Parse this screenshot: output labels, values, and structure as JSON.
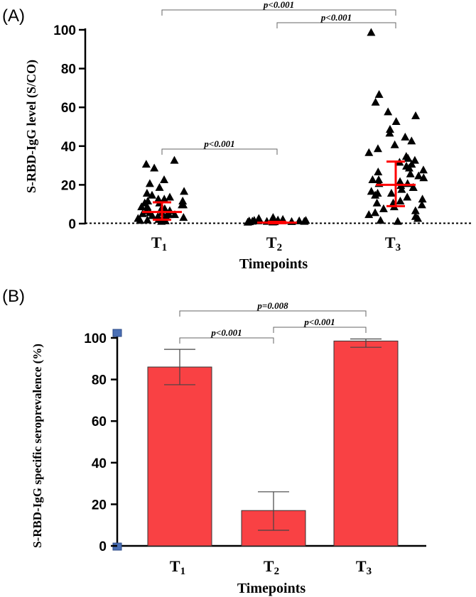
{
  "chart_data": [
    {
      "panel_label": "(A)",
      "type": "scatter",
      "title": "",
      "xlabel": "Timepoints",
      "ylabel": "S-RBD-IgG level (S/CO)",
      "ylim": [
        0,
        100
      ],
      "y_ticks": [
        "0",
        "20",
        "40",
        "60",
        "80",
        "100"
      ],
      "categories": [
        {
          "main": "T",
          "sub": "1"
        },
        {
          "main": "T",
          "sub": "2"
        },
        {
          "main": "T",
          "sub": "3"
        }
      ],
      "reference_line": 0.5,
      "points": [
        [
          0.5,
          0.8,
          1,
          1.2,
          1.5,
          2,
          2,
          2.5,
          3,
          3,
          3.5,
          4,
          4,
          4.5,
          5,
          5,
          6,
          6,
          7,
          7,
          8,
          8,
          9,
          9,
          10,
          10,
          11,
          11,
          12,
          12,
          13,
          14,
          15,
          16,
          18,
          20,
          22,
          28,
          30,
          32
        ],
        [
          0.1,
          0.2,
          0.3,
          0.3,
          0.4,
          0.5,
          0.5,
          0.6,
          0.7,
          0.8,
          0.8,
          1,
          1,
          1.2,
          1.5,
          2,
          2.5
        ],
        [
          0.5,
          1,
          2,
          3,
          4,
          5,
          6,
          7,
          8,
          9,
          10,
          10,
          11,
          12,
          13,
          14,
          15,
          15,
          16,
          17,
          18,
          18,
          19,
          20,
          20,
          21,
          22,
          22,
          23,
          24,
          25,
          26,
          27,
          28,
          29,
          30,
          31,
          32,
          33,
          34,
          36,
          38,
          40,
          42,
          44,
          46,
          48,
          52,
          55,
          57,
          62,
          66,
          98
        ]
      ],
      "median_iqr": [
        {
          "median": 6,
          "q1": 2,
          "q3": 11
        },
        {
          "median": 0.5,
          "q1": 0.2,
          "q3": 0.9
        },
        {
          "median": 20,
          "q1": 9,
          "q3": 32
        }
      ],
      "comparisons": [
        {
          "from": 0,
          "to": 2,
          "label": "p<0.001"
        },
        {
          "from": 1,
          "to": 2,
          "label": "p<0.001"
        },
        {
          "from": 0,
          "to": 1,
          "label": "p<0.001"
        }
      ],
      "colors": {
        "marker": "#000000",
        "summary": "#ff0000"
      }
    },
    {
      "panel_label": "(B)",
      "type": "bar",
      "title": "",
      "xlabel": "Timepoints",
      "ylabel": "S-RBD-IgG specific seroprevalence (%)",
      "ylim": [
        0,
        100
      ],
      "y_ticks": [
        "0",
        "20",
        "40",
        "60",
        "80",
        "100"
      ],
      "categories": [
        {
          "main": "T",
          "sub": "1"
        },
        {
          "main": "T",
          "sub": "2"
        },
        {
          "main": "T",
          "sub": "3"
        }
      ],
      "values": [
        86,
        17,
        98.5
      ],
      "error_low": [
        77.5,
        7.5,
        95.5
      ],
      "error_high": [
        94.5,
        26,
        99.5
      ],
      "comparisons": [
        {
          "from": 0,
          "to": 2,
          "label": "p=0.008"
        },
        {
          "from": 0,
          "to": 1,
          "label": "p<0.001"
        },
        {
          "from": 1,
          "to": 2,
          "label": "p<0.001"
        }
      ],
      "colors": {
        "bar": "#f94144",
        "bar_stroke": "#333333",
        "axis_marker": "#4a6fb5"
      }
    }
  ]
}
